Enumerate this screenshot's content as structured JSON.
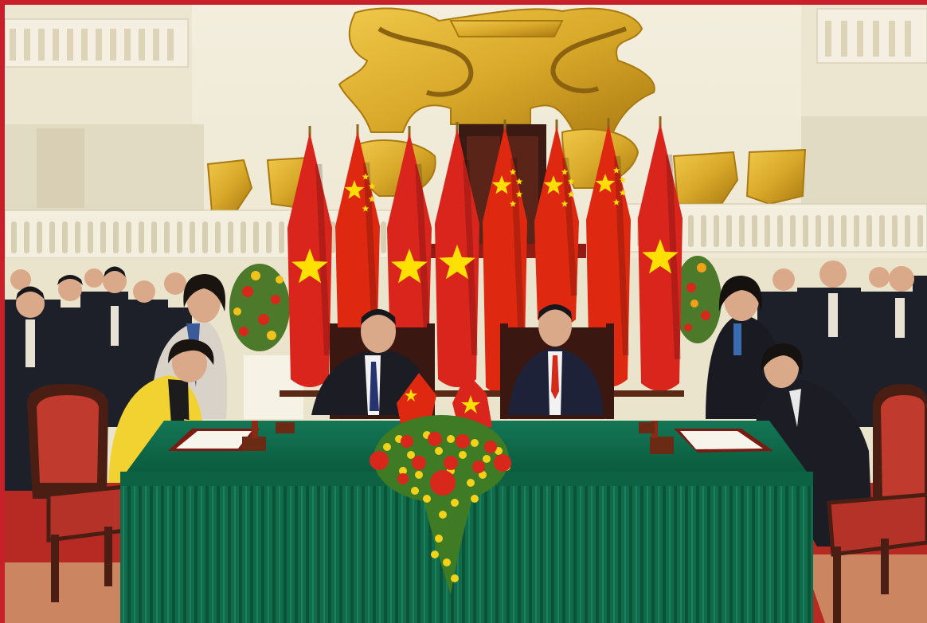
{
  "scene": {
    "subject": "photo",
    "colors": {
      "frame_border": "#c8202a",
      "wall": "#efe9d6",
      "gold": "#d9a92a",
      "gold_dark": "#a97a10",
      "tablecloth": "#0f6b4a",
      "carpet_red": "#c0312a",
      "vietnam_flag_red": "#da251d",
      "vietnam_flag_star": "#ffe000",
      "china_flag_red": "#de2910",
      "china_flag_star": "#ffde00",
      "suit_dark": "#1c1d24",
      "jacket_yellow": "#f2d230",
      "chair_wood": "#4a1e12",
      "chair_seat": "#c03a2e"
    },
    "elements": {
      "flags_vn_count": 4,
      "flags_cn_count": 4,
      "table_flags": [
        "china",
        "vietnam"
      ],
      "seated_leaders": 2,
      "signatories": 2
    }
  }
}
